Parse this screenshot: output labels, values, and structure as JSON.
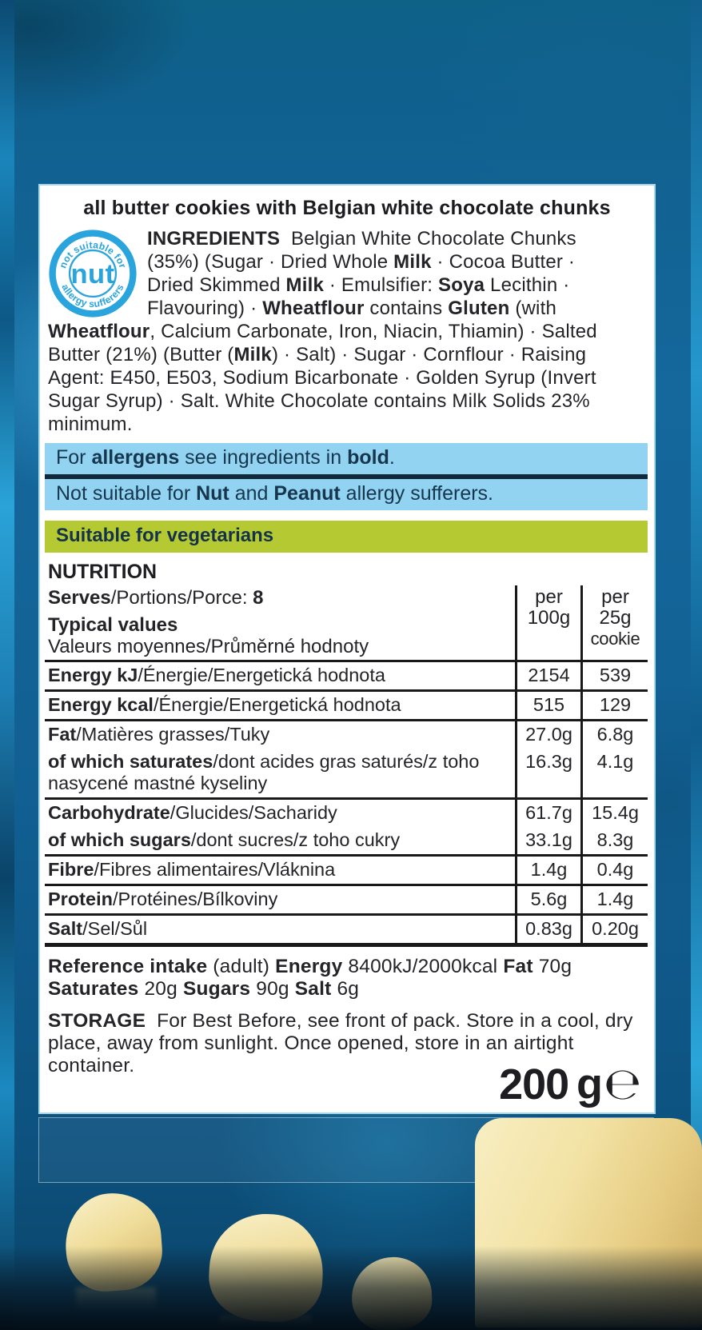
{
  "label": {
    "title": "all butter cookies with Belgian white chocolate chunks",
    "badge": {
      "top_text": "not suitable for",
      "center_text": "nut",
      "bottom_text": "allergy sufferers"
    },
    "ingredients": [
      {
        "t": "INGREDIENTS",
        "b": true
      },
      {
        "t": "  Belgian White Chocolate Chunks (35%) (Sugar · Dried Whole ",
        "b": false
      },
      {
        "t": "Milk",
        "b": true
      },
      {
        "t": " · Cocoa Butter · Dried Skimmed ",
        "b": false
      },
      {
        "t": "Milk",
        "b": true
      },
      {
        "t": " · Emulsifier: ",
        "b": false
      },
      {
        "t": "Soya",
        "b": true
      },
      {
        "t": " Lecithin · Flavouring) · ",
        "b": false
      },
      {
        "t": "Wheatflour",
        "b": true
      },
      {
        "t": " contains ",
        "b": false
      },
      {
        "t": "Gluten",
        "b": true
      },
      {
        "t": " (with ",
        "b": false
      },
      {
        "t": "Wheatflour",
        "b": true
      },
      {
        "t": ", Calcium Carbonate, Iron, Niacin, Thiamin) · Salted Butter (21%) (Butter (",
        "b": false
      },
      {
        "t": "Milk",
        "b": true
      },
      {
        "t": ") · Salt) · Sugar · Cornflour · Raising Agent: E450, E503, Sodium Bicarbonate · Golden Syrup (Invert Sugar Syrup) · Salt. White Chocolate contains Milk Solids 23% minimum.",
        "b": false
      }
    ],
    "allergen_line1": [
      {
        "t": "For ",
        "b": false
      },
      {
        "t": "allergens",
        "b": true
      },
      {
        "t": " see ingredients in ",
        "b": false
      },
      {
        "t": "bold",
        "b": true
      },
      {
        "t": ".",
        "b": false
      }
    ],
    "allergen_line2": [
      {
        "t": "Not suitable for ",
        "b": false
      },
      {
        "t": "Nut",
        "b": true
      },
      {
        "t": " and ",
        "b": false
      },
      {
        "t": "Peanut",
        "b": true
      },
      {
        "t": " allergy sufferers.",
        "b": false
      }
    ],
    "vegetarian_banner": "Suitable for vegetarians",
    "nutrition": {
      "heading": "NUTRITION",
      "serves": [
        {
          "t": "Serves",
          "b": true
        },
        {
          "t": "/Portions/Porce: ",
          "b": false
        },
        {
          "t": "8",
          "b": true
        }
      ],
      "typical_values_line1": "Typical values",
      "typical_values_line2": "Valeurs moyennes/Průměrné hodnoty",
      "col_per100": {
        "line1": "per",
        "line2": "100g"
      },
      "col_per25": {
        "line1": "per",
        "line2": "25g",
        "line3": "cookie"
      },
      "rows": [
        {
          "label": [
            {
              "t": "Energy kJ",
              "b": true
            },
            {
              "t": "/Énergie/Energetická hodnota",
              "b": false
            }
          ],
          "per100g": "2154",
          "per25g": "539",
          "border": "thin"
        },
        {
          "label": [
            {
              "t": "Energy kcal",
              "b": true
            },
            {
              "t": "/Énergie/Energetická hodnota",
              "b": false
            }
          ],
          "per100g": "515",
          "per25g": "129",
          "border": "thin"
        },
        {
          "label": [
            {
              "t": "Fat",
              "b": true
            },
            {
              "t": "/Matières grasses/Tuky",
              "b": false
            }
          ],
          "per100g": "27.0g",
          "per25g": "6.8g",
          "border": "none"
        },
        {
          "label": [
            {
              "t": "of which saturates",
              "b": true
            },
            {
              "t": "/dont acides gras saturés/z toho nasycené mastné kyseliny",
              "b": false
            }
          ],
          "per100g": "16.3g",
          "per25g": "4.1g",
          "border": "thin"
        },
        {
          "label": [
            {
              "t": "Carbohydrate",
              "b": true
            },
            {
              "t": "/Glucides/Sacharidy",
              "b": false
            }
          ],
          "per100g": "61.7g",
          "per25g": "15.4g",
          "border": "none"
        },
        {
          "label": [
            {
              "t": "of which sugars",
              "b": true
            },
            {
              "t": "/dont sucres/z toho cukry",
              "b": false
            }
          ],
          "per100g": "33.1g",
          "per25g": "8.3g",
          "border": "thin"
        },
        {
          "label": [
            {
              "t": "Fibre",
              "b": true
            },
            {
              "t": "/Fibres alimentaires/Vláknina",
              "b": false
            }
          ],
          "per100g": "1.4g",
          "per25g": "0.4g",
          "border": "thin"
        },
        {
          "label": [
            {
              "t": "Protein",
              "b": true
            },
            {
              "t": "/Protéines/Bílkoviny",
              "b": false
            }
          ],
          "per100g": "5.6g",
          "per25g": "1.4g",
          "border": "thin"
        },
        {
          "label": [
            {
              "t": "Salt",
              "b": true
            },
            {
              "t": "/Sel/Sůl",
              "b": false
            }
          ],
          "per100g": "0.83g",
          "per25g": "0.20g",
          "border": "thick"
        }
      ],
      "reference_intake": [
        {
          "t": "Reference intake",
          "b": true
        },
        {
          "t": " (adult) ",
          "b": false
        },
        {
          "t": "Energy",
          "b": true
        },
        {
          "t": " 8400kJ/2000kcal ",
          "b": false
        },
        {
          "t": "Fat",
          "b": true
        },
        {
          "t": " 70g ",
          "b": false
        },
        {
          "t": "Saturates",
          "b": true
        },
        {
          "t": " 20g ",
          "b": false
        },
        {
          "t": "Sugars",
          "b": true
        },
        {
          "t": " 90g ",
          "b": false
        },
        {
          "t": "Salt",
          "b": true
        },
        {
          "t": " 6g",
          "b": false
        }
      ]
    },
    "storage": [
      {
        "t": "STORAGE",
        "b": true
      },
      {
        "t": "  For Best Before, see front of pack. Store in a cool, dry place, away from sunlight. Once opened, store in an airtight container.",
        "b": false
      }
    ],
    "weight": {
      "value": "200 g",
      "estimated_symbol": "℮"
    }
  },
  "colors": {
    "badge_blue": "#2aa4dc",
    "allergen_box_bg": "#92d3f2",
    "allergen_divider": "#12293a",
    "allergen_text": "#16364e",
    "vegetarian_banner_bg": "#b5ca32",
    "vegetarian_banner_text": "#14324a",
    "body_text": "#242428",
    "table_line": "#191919",
    "panel_bg": "#ffffff",
    "panel_border": "#a6d8e9",
    "background_blue": "#135e92",
    "chunk_cream": "#eedd9e"
  }
}
